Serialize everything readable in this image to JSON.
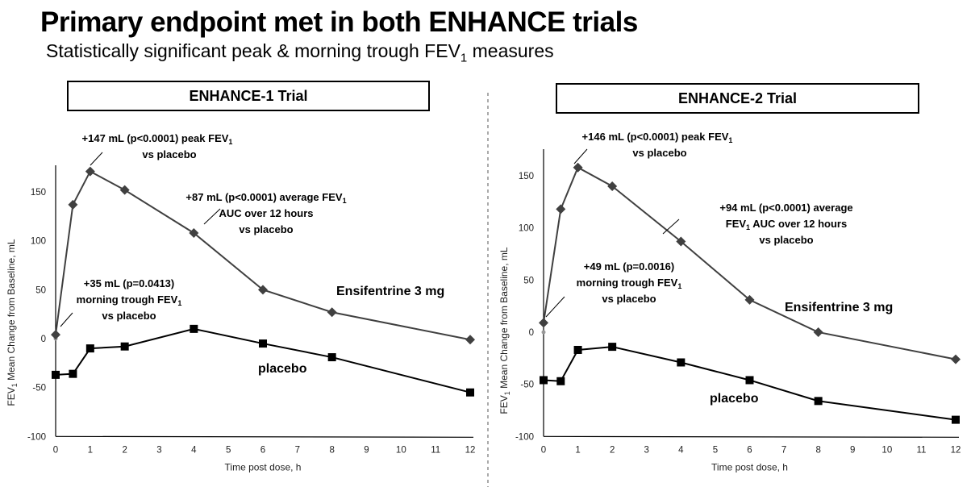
{
  "title": "Primary endpoint met in both ENHANCE trials",
  "subtitle": {
    "pre": "Statistically significant peak & morning trough FEV",
    "sub": "1",
    "post": " measures"
  },
  "colors": {
    "ensifentrine": "#404040",
    "placebo": "#000000"
  },
  "chart_data": [
    {
      "type": "line",
      "title": "ENHANCE-1 Trial",
      "xlabel": "Time post dose, h",
      "ylabel": {
        "pre": "FEV",
        "sub": "1",
        "post": " Mean Change from Baseline, mL"
      },
      "xlim": [
        0,
        12
      ],
      "ylim": [
        -100,
        170
      ],
      "xticks": [
        "0",
        "1",
        "2",
        "3",
        "4",
        "5",
        "6",
        "7",
        "8",
        "9",
        "10",
        "11",
        "12"
      ],
      "yticks": [
        "150",
        "100",
        "50",
        "0",
        "-50",
        "-100"
      ],
      "grid": false,
      "x": [
        0,
        0.5,
        1,
        2,
        4,
        6,
        8,
        12
      ],
      "series": [
        {
          "name": "Ensifentrine 3 mg",
          "marker": "diamond",
          "values": [
            4,
            137,
            171,
            152,
            108,
            50,
            27,
            -1
          ]
        },
        {
          "name": "placebo",
          "marker": "square",
          "values": [
            -37,
            -36,
            -10,
            -8,
            10,
            -5,
            -19,
            -55
          ]
        }
      ],
      "annotations": [
        {
          "lines": [
            {
              "pre": "+147 mL (p<0.0001) peak FEV",
              "sub": "1",
              "post": ""
            },
            {
              "pre": "vs placebo",
              "sub": "",
              "post": ""
            }
          ]
        },
        {
          "lines": [
            {
              "pre": "+87 mL (p<0.0001) average FEV",
              "sub": "1",
              "post": ""
            },
            {
              "pre": "AUC over 12 hours",
              "sub": "",
              "post": ""
            },
            {
              "pre": "vs placebo",
              "sub": "",
              "post": ""
            }
          ]
        },
        {
          "lines": [
            {
              "pre": "+35 mL (p=0.0413)",
              "sub": "",
              "post": ""
            },
            {
              "pre": "morning trough FEV",
              "sub": "1",
              "post": ""
            },
            {
              "pre": "vs placebo",
              "sub": "",
              "post": ""
            }
          ]
        }
      ]
    },
    {
      "type": "line",
      "title": "ENHANCE-2 Trial",
      "xlabel": "Time post dose, h",
      "ylabel": {
        "pre": "FEV",
        "sub": "1",
        "post": " Mean Change from Baseline, mL"
      },
      "xlim": [
        0,
        12
      ],
      "ylim": [
        -100,
        175
      ],
      "xticks": [
        "0",
        "1",
        "2",
        "3",
        "4",
        "5",
        "6",
        "7",
        "8",
        "9",
        "10",
        "11",
        "12"
      ],
      "yticks": [
        "150",
        "100",
        "50",
        "0",
        "-50",
        "-100"
      ],
      "grid": false,
      "x": [
        0,
        0.5,
        1,
        2,
        4,
        6,
        8,
        12
      ],
      "series": [
        {
          "name": "Ensifentrine 3 mg",
          "marker": "diamond",
          "values": [
            9,
            118,
            158,
            140,
            87,
            31,
            0,
            -26
          ]
        },
        {
          "name": "placebo",
          "marker": "square",
          "values": [
            -46,
            -47,
            -17,
            -14,
            -29,
            -46,
            -66,
            -84
          ]
        }
      ],
      "annotations": [
        {
          "lines": [
            {
              "pre": "+146 mL (p<0.0001) peak FEV",
              "sub": "1",
              "post": ""
            },
            {
              "pre": "vs placebo",
              "sub": "",
              "post": ""
            }
          ]
        },
        {
          "lines": [
            {
              "pre": "+94 mL (p<0.0001) average",
              "sub": "",
              "post": ""
            },
            {
              "pre": "FEV",
              "sub": "1",
              "post": " AUC over 12 hours"
            },
            {
              "pre": "vs placebo",
              "sub": "",
              "post": ""
            }
          ]
        },
        {
          "lines": [
            {
              "pre": "+49 mL (p=0.0016)",
              "sub": "",
              "post": ""
            },
            {
              "pre": "morning trough FEV",
              "sub": "1",
              "post": ""
            },
            {
              "pre": "vs placebo",
              "sub": "",
              "post": ""
            }
          ]
        }
      ]
    }
  ]
}
